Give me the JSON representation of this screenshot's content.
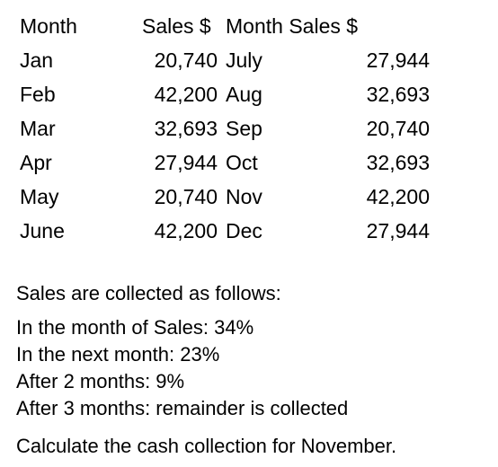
{
  "table": {
    "headers": [
      "Month",
      "Sales $",
      "Month",
      "Sales $"
    ],
    "rows": [
      {
        "month1": "Jan",
        "sales1": "20,740",
        "month2": "July",
        "sales2": "27,944"
      },
      {
        "month1": "Feb",
        "sales1": "42,200",
        "month2": "Aug",
        "sales2": "32,693"
      },
      {
        "month1": "Mar",
        "sales1": "32,693",
        "month2": "Sep",
        "sales2": "20,740"
      },
      {
        "month1": "Apr",
        "sales1": "27,944",
        "month2": "Oct",
        "sales2": "32,693"
      },
      {
        "month1": "May",
        "sales1": "20,740",
        "month2": "Nov",
        "sales2": "42,200"
      },
      {
        "month1": "June",
        "sales1": "42,200",
        "month2": "Dec",
        "sales2": "27,944"
      }
    ]
  },
  "notes": {
    "intro": "Sales are collected as follows:",
    "schedule": [
      "In the month of Sales: 34%",
      "In the next month: 23%",
      "After 2 months: 9%",
      "After 3 months: remainder is collected"
    ]
  },
  "question": "Calculate the cash collection for November."
}
